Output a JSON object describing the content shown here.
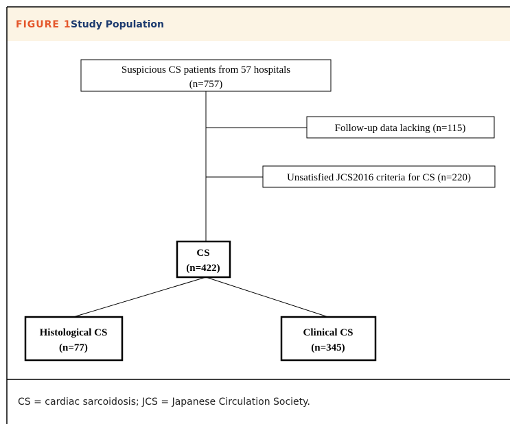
{
  "header": {
    "label": "FIGURE 1",
    "title": "Study Population"
  },
  "nodes": [
    {
      "lines": [
        "Suspicious CS patients from 57 hospitals",
        "(n=757)"
      ]
    },
    {
      "lines": [
        "Follow-up data lacking  (n=115)"
      ]
    },
    {
      "lines": [
        "Unsatisfied JCS2016 criteria for CS (n=220)"
      ]
    },
    {
      "lines": [
        "CS",
        "(n=422)"
      ]
    },
    {
      "lines": [
        "Histological CS",
        "(n=77)"
      ]
    },
    {
      "lines": [
        "Clinical CS",
        "(n=345)"
      ]
    }
  ],
  "caption": "CS = cardiac sarcoidosis; JCS = Japanese Circulation Society."
}
